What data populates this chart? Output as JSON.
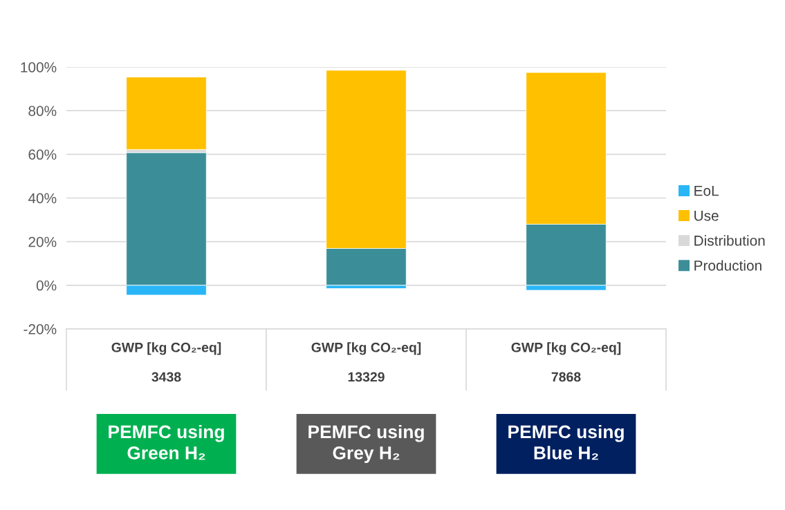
{
  "chart_data": {
    "type": "bar",
    "stacked": true,
    "categories": [
      "PEMFC using Green H₂",
      "PEMFC using Grey H₂",
      "PEMFC using Blue H₂"
    ],
    "series": [
      {
        "name": "Production",
        "color": "#3b8e98",
        "values": [
          60.8,
          16.9,
          28.0
        ]
      },
      {
        "name": "Distribution",
        "color": "#d9d9d9",
        "values": [
          1.4,
          0,
          0
        ]
      },
      {
        "name": "Use",
        "color": "#ffc000",
        "values": [
          33.2,
          81.6,
          69.5
        ]
      },
      {
        "name": "EoL",
        "color": "#29b6f6",
        "values": [
          -4.5,
          -1.5,
          -2.3
        ]
      }
    ],
    "ylim": [
      -20,
      100
    ],
    "yticks": [
      {
        "value": -20,
        "label": "-20%"
      },
      {
        "value": 0,
        "label": "0%"
      },
      {
        "value": 20,
        "label": "20%"
      },
      {
        "value": 40,
        "label": "40%"
      },
      {
        "value": 60,
        "label": "60%"
      },
      {
        "value": 80,
        "label": "80%"
      },
      {
        "value": 100,
        "label": "100%"
      }
    ],
    "grid": "y",
    "legend": "right",
    "annotations": [
      "GWP [kg CO₂-eq]",
      "GWP [kg CO₂-eq]",
      "GWP [kg CO₂-eq]",
      "3438",
      "13329",
      "7868"
    ]
  }
}
